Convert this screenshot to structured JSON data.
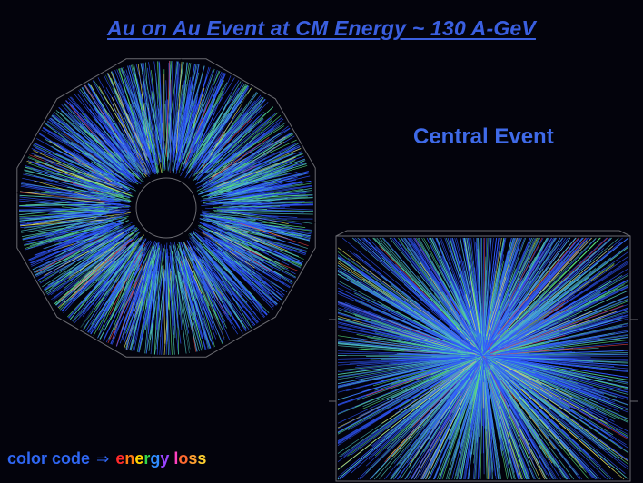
{
  "slide": {
    "title": "Au on Au Event at CM Energy ~ 130 A-GeV",
    "subtitle": "Central Event",
    "caption": {
      "prefix": "color code",
      "arrow": "⇒",
      "word1_letters": [
        "e",
        "n",
        "e",
        "r",
        "g",
        "y"
      ],
      "word2_letters": [
        "l",
        "o",
        "s",
        "s"
      ]
    }
  },
  "colors": {
    "background": "#03030c",
    "title": "#3a5fe0",
    "subtitle": "#3f6ae8",
    "caption": "#2f66f2",
    "track_blue": "#2f57ff",
    "track_cyan": "#4fc8c0",
    "track_green": "#58e07a",
    "track_yellow": "#e8e860",
    "track_red": "#e04040",
    "detector_outline": "#6a6a70",
    "energy_letter_colors": [
      "#ff2a2a",
      "#ff7a12",
      "#ffd400",
      "#33d64a",
      "#2f8cff",
      "#9a44ff"
    ],
    "loss_letter_colors": [
      "#ff40c0",
      "#ff6a30",
      "#ffa030",
      "#ffd030"
    ]
  },
  "figures": {
    "endview_icon": "radial-tracks-detector-end-view",
    "sideview_icon": "tracks-detector-side-view"
  }
}
